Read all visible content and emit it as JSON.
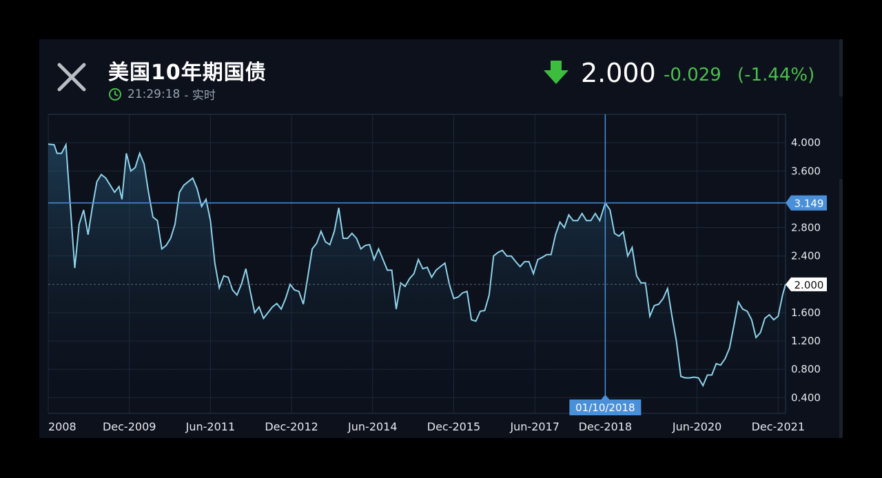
{
  "header": {
    "title": "美国10年期国债",
    "time": "21:29:18",
    "status": "- 实时",
    "price": "2.000",
    "change": "-0.029",
    "change_pct": "(-1.44%)",
    "direction_icon": "arrow-down-icon",
    "close_icon": "close-icon",
    "clock_icon": "clock-icon"
  },
  "colors": {
    "up_down_green": "#4cbf4c",
    "line": "#8fd3ea",
    "crosshair": "#4a90d9",
    "background": "#0c111c"
  },
  "crosshair": {
    "date_label": "01/10/2018",
    "value_label": "3.149",
    "value": 3.149,
    "x_pos": 0.7555
  },
  "chart_data": {
    "type": "area",
    "title": "",
    "xlabel": "",
    "ylabel": "",
    "x_ticks": [
      "2008",
      "Dec-2009",
      "Jun-2011",
      "Dec-2012",
      "Jun-2014",
      "Dec-2015",
      "Jun-2017",
      "Dec-2018",
      "Jun-2020",
      "Dec-2021"
    ],
    "x_tick_pos": [
      0.0,
      0.11,
      0.22,
      0.33,
      0.44,
      0.55,
      0.66,
      0.7555,
      0.88,
      0.99
    ],
    "y_ticks": [
      "4.000",
      "3.600",
      "2.800",
      "2.400",
      "1.600",
      "1.200",
      "0.800",
      "0.400"
    ],
    "ylim": [
      0.18,
      4.4
    ],
    "last_value_label": "2.000",
    "last_value": 2.0,
    "grid": true,
    "x_range": [
      0,
      1
    ],
    "series": [
      {
        "values": [
          [
            0.0,
            3.98
          ],
          [
            0.008,
            3.97
          ],
          [
            0.012,
            3.85
          ],
          [
            0.018,
            3.85
          ],
          [
            0.024,
            3.97
          ],
          [
            0.03,
            3.1
          ],
          [
            0.036,
            2.23
          ],
          [
            0.042,
            2.85
          ],
          [
            0.048,
            3.05
          ],
          [
            0.054,
            2.7
          ],
          [
            0.06,
            3.1
          ],
          [
            0.066,
            3.45
          ],
          [
            0.072,
            3.55
          ],
          [
            0.078,
            3.5
          ],
          [
            0.084,
            3.4
          ],
          [
            0.09,
            3.3
          ],
          [
            0.096,
            3.38
          ],
          [
            0.1,
            3.2
          ],
          [
            0.106,
            3.85
          ],
          [
            0.112,
            3.6
          ],
          [
            0.118,
            3.65
          ],
          [
            0.124,
            3.85
          ],
          [
            0.13,
            3.7
          ],
          [
            0.136,
            3.3
          ],
          [
            0.142,
            2.95
          ],
          [
            0.148,
            2.9
          ],
          [
            0.154,
            2.5
          ],
          [
            0.16,
            2.55
          ],
          [
            0.166,
            2.65
          ],
          [
            0.172,
            2.85
          ],
          [
            0.178,
            3.3
          ],
          [
            0.184,
            3.4
          ],
          [
            0.19,
            3.45
          ],
          [
            0.196,
            3.5
          ],
          [
            0.202,
            3.35
          ],
          [
            0.208,
            3.1
          ],
          [
            0.214,
            3.2
          ],
          [
            0.22,
            2.9
          ],
          [
            0.226,
            2.3
          ],
          [
            0.232,
            1.95
          ],
          [
            0.238,
            2.12
          ],
          [
            0.244,
            2.1
          ],
          [
            0.25,
            1.92
          ],
          [
            0.256,
            1.85
          ],
          [
            0.262,
            2.0
          ],
          [
            0.268,
            2.22
          ],
          [
            0.274,
            1.9
          ],
          [
            0.28,
            1.6
          ],
          [
            0.286,
            1.68
          ],
          [
            0.292,
            1.52
          ],
          [
            0.298,
            1.6
          ],
          [
            0.304,
            1.68
          ],
          [
            0.31,
            1.73
          ],
          [
            0.316,
            1.65
          ],
          [
            0.322,
            1.8
          ],
          [
            0.328,
            2.0
          ],
          [
            0.334,
            1.92
          ],
          [
            0.34,
            1.9
          ],
          [
            0.346,
            1.72
          ],
          [
            0.352,
            2.1
          ],
          [
            0.358,
            2.5
          ],
          [
            0.364,
            2.58
          ],
          [
            0.37,
            2.75
          ],
          [
            0.376,
            2.6
          ],
          [
            0.382,
            2.56
          ],
          [
            0.388,
            2.75
          ],
          [
            0.394,
            3.08
          ],
          [
            0.4,
            2.65
          ],
          [
            0.406,
            2.65
          ],
          [
            0.412,
            2.72
          ],
          [
            0.418,
            2.65
          ],
          [
            0.424,
            2.5
          ],
          [
            0.43,
            2.55
          ],
          [
            0.436,
            2.56
          ],
          [
            0.442,
            2.35
          ],
          [
            0.448,
            2.5
          ],
          [
            0.454,
            2.35
          ],
          [
            0.46,
            2.2
          ],
          [
            0.466,
            2.2
          ],
          [
            0.472,
            1.65
          ],
          [
            0.478,
            2.02
          ],
          [
            0.484,
            1.97
          ],
          [
            0.49,
            2.08
          ],
          [
            0.496,
            2.15
          ],
          [
            0.502,
            2.35
          ],
          [
            0.508,
            2.22
          ],
          [
            0.514,
            2.24
          ],
          [
            0.52,
            2.1
          ],
          [
            0.526,
            2.2
          ],
          [
            0.532,
            2.25
          ],
          [
            0.538,
            2.3
          ],
          [
            0.544,
            2.0
          ],
          [
            0.55,
            1.8
          ],
          [
            0.556,
            1.82
          ],
          [
            0.562,
            1.88
          ],
          [
            0.568,
            1.9
          ],
          [
            0.574,
            1.5
          ],
          [
            0.58,
            1.48
          ],
          [
            0.586,
            1.62
          ],
          [
            0.592,
            1.63
          ],
          [
            0.598,
            1.85
          ],
          [
            0.604,
            2.4
          ],
          [
            0.61,
            2.45
          ],
          [
            0.616,
            2.48
          ],
          [
            0.622,
            2.4
          ],
          [
            0.628,
            2.4
          ],
          [
            0.634,
            2.32
          ],
          [
            0.64,
            2.25
          ],
          [
            0.646,
            2.32
          ],
          [
            0.652,
            2.32
          ],
          [
            0.658,
            2.15
          ],
          [
            0.664,
            2.35
          ],
          [
            0.67,
            2.38
          ],
          [
            0.676,
            2.42
          ],
          [
            0.682,
            2.42
          ],
          [
            0.688,
            2.7
          ],
          [
            0.694,
            2.88
          ],
          [
            0.7,
            2.8
          ],
          [
            0.706,
            2.98
          ],
          [
            0.712,
            2.9
          ],
          [
            0.718,
            2.9
          ],
          [
            0.724,
            3.0
          ],
          [
            0.73,
            2.9
          ],
          [
            0.736,
            2.9
          ],
          [
            0.742,
            3.0
          ],
          [
            0.748,
            2.9
          ],
          [
            0.7555,
            3.149
          ],
          [
            0.762,
            3.05
          ],
          [
            0.768,
            2.72
          ],
          [
            0.774,
            2.68
          ],
          [
            0.78,
            2.74
          ],
          [
            0.786,
            2.4
          ],
          [
            0.792,
            2.52
          ],
          [
            0.798,
            2.12
          ],
          [
            0.804,
            2.02
          ],
          [
            0.81,
            2.02
          ],
          [
            0.816,
            1.55
          ],
          [
            0.822,
            1.7
          ],
          [
            0.828,
            1.72
          ],
          [
            0.834,
            1.8
          ],
          [
            0.84,
            1.94
          ],
          [
            0.846,
            1.55
          ],
          [
            0.852,
            1.2
          ],
          [
            0.858,
            0.7
          ],
          [
            0.864,
            0.68
          ],
          [
            0.87,
            0.68
          ],
          [
            0.876,
            0.69
          ],
          [
            0.882,
            0.68
          ],
          [
            0.888,
            0.57
          ],
          [
            0.894,
            0.72
          ],
          [
            0.9,
            0.72
          ],
          [
            0.906,
            0.88
          ],
          [
            0.912,
            0.86
          ],
          [
            0.918,
            0.95
          ],
          [
            0.924,
            1.1
          ],
          [
            0.93,
            1.42
          ],
          [
            0.936,
            1.75
          ],
          [
            0.942,
            1.65
          ],
          [
            0.948,
            1.62
          ],
          [
            0.954,
            1.5
          ],
          [
            0.96,
            1.25
          ],
          [
            0.966,
            1.32
          ],
          [
            0.972,
            1.52
          ],
          [
            0.978,
            1.57
          ],
          [
            0.984,
            1.5
          ],
          [
            0.99,
            1.55
          ],
          [
            0.996,
            1.85
          ],
          [
            1.0,
            2.0
          ]
        ]
      }
    ]
  }
}
